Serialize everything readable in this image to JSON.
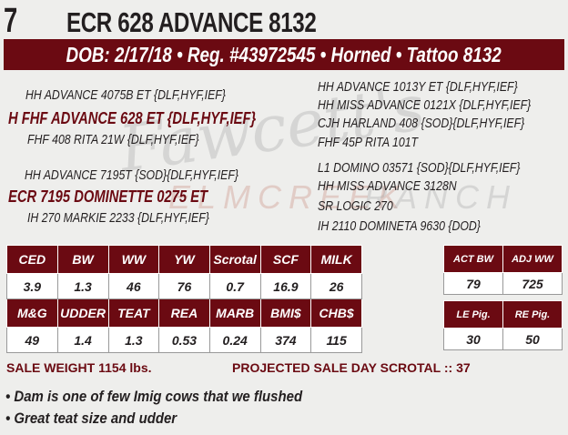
{
  "lot": "7",
  "title": "ECR 628 ADVANCE 8132",
  "banner": "DOB: 2/17/18 • Reg. #43972545 • Horned • Tattoo 8132",
  "watermark": {
    "script": "Fawcett's",
    "text1": "ELMCREEK",
    "text2": "RANCH"
  },
  "pedigree": {
    "sire_sire": "HH ADVANCE 4075B ET {DLF,HYF,IEF}",
    "sire": "H FHF ADVANCE 628 ET {DLF,HYF,IEF}",
    "sire_dam": "FHF 408 RITA 21W {DLF,HYF,IEF}",
    "dam_sire": "HH ADVANCE 7195T {SOD}{DLF,HYF,IEF}",
    "dam": "ECR 7195 DOMINETTE 0275 ET",
    "dam_dam": "IH 270 MARKIE 2233 {DLF,HYF,IEF}",
    "right": [
      "HH ADVANCE 1013Y ET {DLF,HYF,IEF}",
      "HH MISS ADVANCE 0121X {DLF,HYF,IEF}",
      "CJH HARLAND 408 {SOD}{DLF,HYF,IEF}",
      "FHF 45P RITA 101T",
      "L1 DOMINO 03571 {SOD}{DLF,HYF,IEF}",
      "HH MISS ADVANCE 3128N",
      "SR LOGIC 270",
      "IH 2110 DOMINETA 9630 {DOD}"
    ]
  },
  "epd": {
    "headers1": [
      "CED",
      "BW",
      "WW",
      "YW",
      "Scrotal",
      "SCF",
      "MILK"
    ],
    "values1": [
      "3.9",
      "1.3",
      "46",
      "76",
      "0.7",
      "16.9",
      "26"
    ],
    "headers2": [
      "M&G",
      "UDDER",
      "TEAT",
      "REA",
      "MARB",
      "BMI$",
      "CHB$"
    ],
    "values2": [
      "49",
      "1.4",
      "1.3",
      "0.53",
      "0.24",
      "374",
      "115"
    ]
  },
  "weights": {
    "headers": [
      "ACT BW",
      "ADJ WW"
    ],
    "values": [
      "79",
      "725"
    ]
  },
  "pig": {
    "headers": [
      "LE Pig.",
      "RE Pig."
    ],
    "values": [
      "30",
      "50"
    ]
  },
  "sale_weight": "SALE WEIGHT 1154 lbs.",
  "scrotal": "PROJECTED SALE DAY SCROTAL :: 37",
  "bullets": [
    "• Dam is one of few Imig cows that we flushed",
    "• Great teat size and udder"
  ],
  "colors": {
    "maroon": "#6b0a12",
    "background": "#eeeeec"
  }
}
